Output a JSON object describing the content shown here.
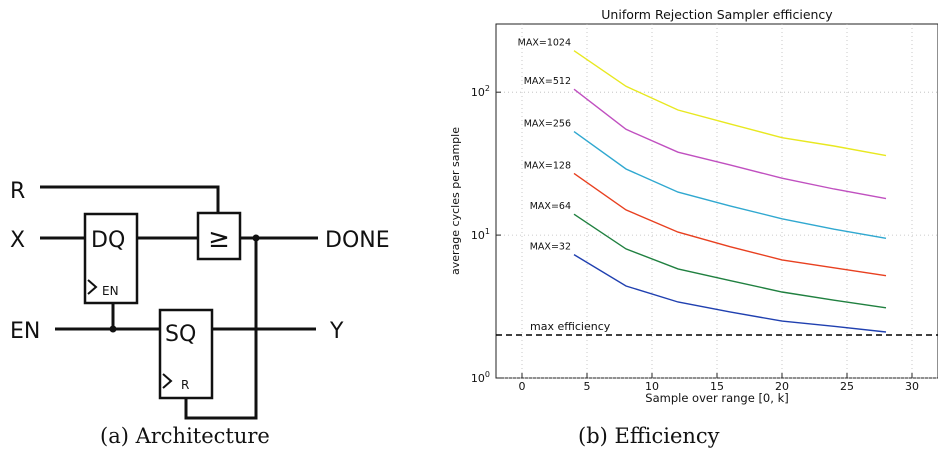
{
  "captions": {
    "a": "(a) Architecture",
    "b": "(b) Efficiency"
  },
  "diagram": {
    "inputs": [
      "R",
      "X",
      "EN"
    ],
    "outputs": [
      "DONE",
      "Y"
    ],
    "dff": {
      "label": "DQ",
      "enable_label": "EN"
    },
    "comparator": {
      "symbol": "≥"
    },
    "srlatch": {
      "label": "SQ",
      "reset_label": "R"
    }
  },
  "chart_data": {
    "type": "line",
    "title": "Uniform Rejection Sampler efficiency",
    "xlabel": "Sample over range [0, k]",
    "ylabel": "average cycles per sample",
    "xlim": [
      -2,
      32
    ],
    "ylim": [
      1,
      300
    ],
    "yscale": "log",
    "grid": true,
    "x_ticks": [
      0,
      5,
      10,
      15,
      20,
      25,
      30
    ],
    "y_ticks": [
      {
        "value": 1,
        "base": "10",
        "exp": "0"
      },
      {
        "value": 10,
        "base": "10",
        "exp": "1"
      },
      {
        "value": 100,
        "base": "10",
        "exp": "2"
      }
    ],
    "x": [
      4,
      8,
      12,
      16,
      20,
      24,
      28
    ],
    "series": [
      {
        "name": "MAX=1024",
        "color": "#e8e820",
        "values": [
          195,
          110,
          75,
          60,
          48,
          42,
          36
        ]
      },
      {
        "name": "MAX=512",
        "color": "#c050c0",
        "values": [
          105,
          55,
          38,
          31,
          25,
          21,
          18
        ]
      },
      {
        "name": "MAX=256",
        "color": "#30a8d0",
        "values": [
          53,
          29,
          20,
          16,
          13,
          11,
          9.5
        ]
      },
      {
        "name": "MAX=128",
        "color": "#e84020",
        "values": [
          27,
          15,
          10.5,
          8.3,
          6.7,
          5.9,
          5.2
        ]
      },
      {
        "name": "MAX=64",
        "color": "#208040",
        "values": [
          14,
          8.0,
          5.8,
          4.8,
          4.0,
          3.5,
          3.1
        ]
      },
      {
        "name": "MAX=32",
        "color": "#2040b0",
        "values": [
          7.3,
          4.4,
          3.4,
          2.9,
          2.5,
          2.3,
          2.1
        ]
      }
    ],
    "reference_line": {
      "label": "max efficiency",
      "value": 2,
      "style": "dashed",
      "color": "#000000"
    }
  }
}
